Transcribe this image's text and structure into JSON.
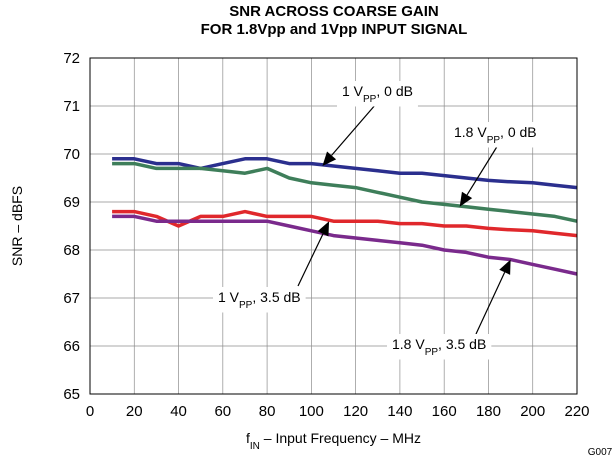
{
  "chart_data": {
    "type": "line",
    "title": "SNR ACROSS COARSE GAIN",
    "subtitle": "FOR 1.8Vpp and 1Vpp INPUT SIGNAL",
    "xlabel": {
      "prefix": "f",
      "sub": "IN",
      "rest": " – Input Frequency – MHz"
    },
    "ylabel": "SNR – dBFS",
    "xlim": [
      0,
      220
    ],
    "ylim": [
      65,
      72
    ],
    "xticks": [
      0,
      20,
      40,
      60,
      80,
      100,
      120,
      140,
      160,
      180,
      200,
      220
    ],
    "yticks": [
      65,
      66,
      67,
      68,
      69,
      70,
      71,
      72
    ],
    "grid": true,
    "figure_id": "G007",
    "series": [
      {
        "name": "1 VPP, 0 dB",
        "color": "#2b2f8e",
        "x": [
          10,
          20,
          30,
          40,
          50,
          60,
          70,
          80,
          90,
          100,
          110,
          120,
          130,
          140,
          150,
          160,
          170,
          180,
          190,
          200,
          210,
          220
        ],
        "y": [
          69.9,
          69.9,
          69.8,
          69.8,
          69.7,
          69.8,
          69.9,
          69.9,
          69.8,
          69.8,
          69.75,
          69.7,
          69.65,
          69.6,
          69.6,
          69.55,
          69.5,
          69.45,
          69.42,
          69.4,
          69.35,
          69.3
        ]
      },
      {
        "name": "1.8 VPP, 0 dB",
        "color": "#3e7e5a",
        "x": [
          10,
          20,
          30,
          40,
          50,
          60,
          70,
          80,
          90,
          100,
          110,
          120,
          130,
          140,
          150,
          160,
          170,
          180,
          190,
          200,
          210,
          220
        ],
        "y": [
          69.8,
          69.8,
          69.7,
          69.7,
          69.7,
          69.65,
          69.6,
          69.7,
          69.5,
          69.4,
          69.35,
          69.3,
          69.2,
          69.1,
          69.0,
          68.95,
          68.9,
          68.85,
          68.8,
          68.75,
          68.7,
          68.6
        ]
      },
      {
        "name": "1 VPP, 3.5 dB",
        "color": "#e0282c",
        "x": [
          10,
          20,
          30,
          40,
          50,
          60,
          70,
          80,
          90,
          100,
          110,
          120,
          130,
          140,
          150,
          160,
          170,
          180,
          190,
          200,
          210,
          220
        ],
        "y": [
          68.8,
          68.8,
          68.7,
          68.5,
          68.7,
          68.7,
          68.8,
          68.7,
          68.7,
          68.7,
          68.6,
          68.6,
          68.6,
          68.55,
          68.55,
          68.5,
          68.5,
          68.45,
          68.42,
          68.4,
          68.35,
          68.3
        ]
      },
      {
        "name": "1.8 VPP, 3.5 dB",
        "color": "#7a2a8c",
        "x": [
          10,
          20,
          30,
          40,
          50,
          60,
          70,
          80,
          90,
          100,
          110,
          120,
          130,
          140,
          150,
          160,
          170,
          180,
          190,
          200,
          210,
          220
        ],
        "y": [
          68.7,
          68.7,
          68.6,
          68.6,
          68.6,
          68.6,
          68.6,
          68.6,
          68.5,
          68.4,
          68.3,
          68.25,
          68.2,
          68.15,
          68.1,
          68.0,
          67.95,
          67.85,
          67.8,
          67.7,
          67.6,
          67.5
        ]
      }
    ],
    "annotations": [
      {
        "main": "1 V",
        "sub": "PP",
        "tail": ", 0 dB",
        "series": 0,
        "arrow_to": [
          105,
          69.75
        ]
      },
      {
        "main": "1.8 V",
        "sub": "PP",
        "tail": ", 0 dB",
        "series": 1,
        "arrow_to": [
          167,
          68.9
        ]
      },
      {
        "main": "1 V",
        "sub": "PP",
        "tail": ", 3.5 dB",
        "series": 2,
        "arrow_to": [
          108,
          68.6
        ]
      },
      {
        "main": "1.8 V",
        "sub": "PP",
        "tail": ", 3.5 dB",
        "series": 3,
        "arrow_to": [
          190,
          67.8
        ]
      }
    ]
  }
}
